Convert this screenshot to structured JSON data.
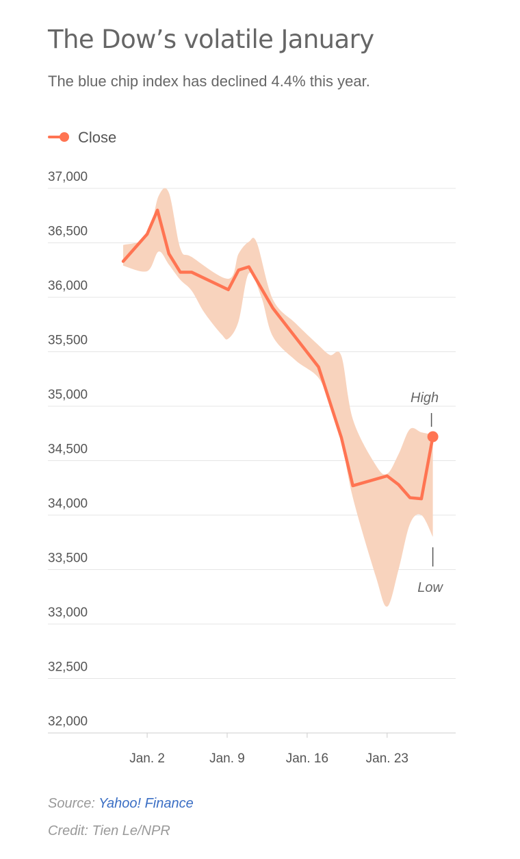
{
  "header": {
    "title": "The Dow’s volatile January",
    "subtitle": "The blue chip index has declined 4.4% this year."
  },
  "colors": {
    "line": "#ff7452",
    "band": "#f8d3bd",
    "grid": "#e5e5e5",
    "axis": "#cccccc",
    "tick_text": "#555555",
    "annotation_text": "#666666"
  },
  "chart_data": {
    "type": "line",
    "title": "The Dow’s volatile January",
    "legend": {
      "label": "Close",
      "placement": "top-left"
    },
    "xlabel": "",
    "ylabel": "",
    "ylim": [
      32000,
      37000
    ],
    "yticks": [
      32000,
      32500,
      33000,
      33500,
      34000,
      34500,
      35000,
      35500,
      36000,
      36500,
      37000
    ],
    "ytick_labels": [
      "32,000",
      "32,500",
      "33,000",
      "33,500",
      "34,000",
      "34,500",
      "35,000",
      "35,500",
      "36,000",
      "36,500",
      "37,000"
    ],
    "xlim": [
      0,
      31
    ],
    "xticks": [
      {
        "day": 3,
        "label": "Jan. 2"
      },
      {
        "day": 10,
        "label": "Jan. 9"
      },
      {
        "day": 17,
        "label": "Jan. 16"
      },
      {
        "day": 24,
        "label": "Jan. 23"
      }
    ],
    "close": [
      {
        "day": 0.9,
        "value": 36330
      },
      {
        "day": 3.0,
        "value": 36580
      },
      {
        "day": 3.9,
        "value": 36800
      },
      {
        "day": 4.9,
        "value": 36400
      },
      {
        "day": 5.9,
        "value": 36230
      },
      {
        "day": 6.9,
        "value": 36230
      },
      {
        "day": 10.1,
        "value": 36070
      },
      {
        "day": 11.0,
        "value": 36250
      },
      {
        "day": 11.9,
        "value": 36280
      },
      {
        "day": 14.0,
        "value": 35900
      },
      {
        "day": 18.0,
        "value": 35360
      },
      {
        "day": 20.0,
        "value": 34710
      },
      {
        "day": 21.0,
        "value": 34270
      },
      {
        "day": 24.0,
        "value": 34360
      },
      {
        "day": 25.0,
        "value": 34280
      },
      {
        "day": 26.0,
        "value": 34160
      },
      {
        "day": 27.0,
        "value": 34150
      },
      {
        "day": 28.0,
        "value": 34720
      }
    ],
    "high": [
      {
        "day": 0.9,
        "value": 36480
      },
      {
        "day": 3.0,
        "value": 36560
      },
      {
        "day": 4.0,
        "value": 36930
      },
      {
        "day": 4.9,
        "value": 36960
      },
      {
        "day": 5.9,
        "value": 36450
      },
      {
        "day": 6.9,
        "value": 36370
      },
      {
        "day": 10.1,
        "value": 36170
      },
      {
        "day": 11.0,
        "value": 36400
      },
      {
        "day": 11.9,
        "value": 36510
      },
      {
        "day": 12.6,
        "value": 36500
      },
      {
        "day": 14.0,
        "value": 35980
      },
      {
        "day": 16.0,
        "value": 35760
      },
      {
        "day": 18.0,
        "value": 35560
      },
      {
        "day": 19.0,
        "value": 35470
      },
      {
        "day": 20.0,
        "value": 35460
      },
      {
        "day": 21.0,
        "value": 34880
      },
      {
        "day": 23.0,
        "value": 34460
      },
      {
        "day": 24.0,
        "value": 34380
      },
      {
        "day": 25.0,
        "value": 34560
      },
      {
        "day": 26.0,
        "value": 34790
      },
      {
        "day": 27.0,
        "value": 34760
      },
      {
        "day": 28.0,
        "value": 34740
      }
    ],
    "low": [
      {
        "day": 0.9,
        "value": 36290
      },
      {
        "day": 3.0,
        "value": 36240
      },
      {
        "day": 4.0,
        "value": 36420
      },
      {
        "day": 4.9,
        "value": 36300
      },
      {
        "day": 5.9,
        "value": 36160
      },
      {
        "day": 6.9,
        "value": 36060
      },
      {
        "day": 8.0,
        "value": 35860
      },
      {
        "day": 9.5,
        "value": 35660
      },
      {
        "day": 10.1,
        "value": 35620
      },
      {
        "day": 11.0,
        "value": 35780
      },
      {
        "day": 11.9,
        "value": 36220
      },
      {
        "day": 13.0,
        "value": 36000
      },
      {
        "day": 14.0,
        "value": 35640
      },
      {
        "day": 16.0,
        "value": 35420
      },
      {
        "day": 18.0,
        "value": 35260
      },
      {
        "day": 19.0,
        "value": 35000
      },
      {
        "day": 20.0,
        "value": 34680
      },
      {
        "day": 21.0,
        "value": 34160
      },
      {
        "day": 23.0,
        "value": 33440
      },
      {
        "day": 24.0,
        "value": 33160
      },
      {
        "day": 25.0,
        "value": 33500
      },
      {
        "day": 26.0,
        "value": 33920
      },
      {
        "day": 27.0,
        "value": 34000
      },
      {
        "day": 28.0,
        "value": 33800
      }
    ],
    "annotations": [
      {
        "text": "High",
        "day": 28.0,
        "value": 34780,
        "position": "above"
      },
      {
        "text": "Low",
        "day": 28.0,
        "value": 33780,
        "position": "below"
      }
    ]
  },
  "footer": {
    "source_label": "Source: ",
    "source_link": "Yahoo! Finance",
    "credit": "Credit: Tien Le/NPR"
  }
}
